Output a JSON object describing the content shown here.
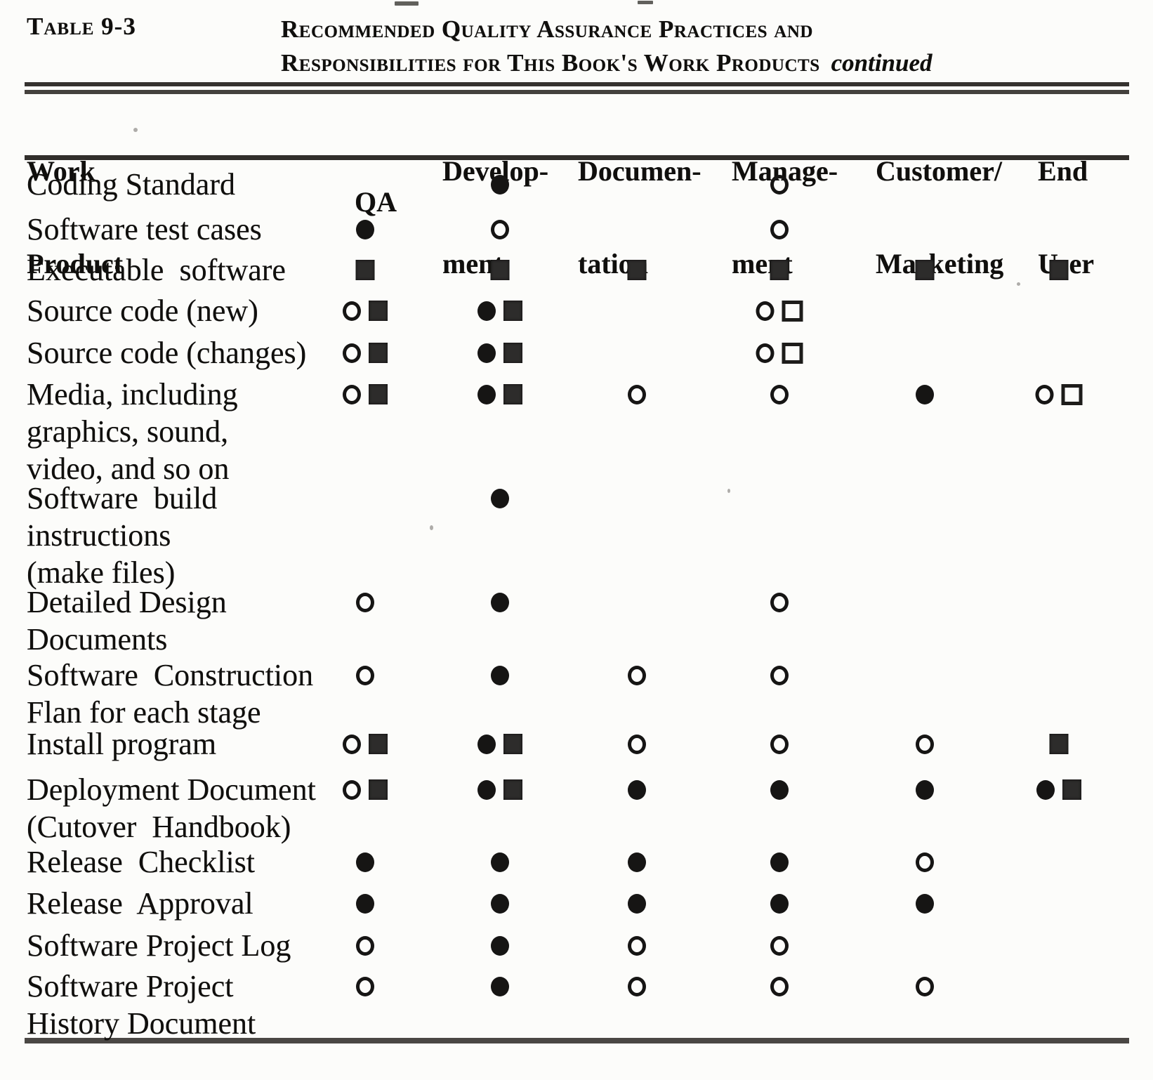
{
  "page": {
    "table_label": "Table 9-3",
    "title_line1": "Recommended Quality Assurance Practices and",
    "title_line2": "Responsibilities for This Book's Work Products",
    "title_suffix": "continued"
  },
  "colors": {
    "paper": "#fcfcfa",
    "ink": "#161514"
  },
  "table": {
    "columns": [
      {
        "id": "work_product",
        "label_lines": [
          "Work",
          "Product"
        ]
      },
      {
        "id": "qa",
        "label_lines": [
          "QA"
        ]
      },
      {
        "id": "development",
        "label_lines": [
          "Develop-",
          "ment"
        ]
      },
      {
        "id": "documentation",
        "label_lines": [
          "Documen-",
          "tation"
        ]
      },
      {
        "id": "management",
        "label_lines": [
          "Manage-",
          "ment"
        ]
      },
      {
        "id": "customer_marketing",
        "label_lines": [
          "Customer/",
          "Marketing"
        ]
      },
      {
        "id": "end_user",
        "label_lines": [
          "End",
          "User"
        ]
      }
    ],
    "symbol_types": [
      "filled-circle",
      "open-circle",
      "filled-square",
      "open-square"
    ],
    "rows": [
      {
        "product_lines": [
          "Coding Standard"
        ],
        "cells": {
          "development": [
            "filled-circle"
          ],
          "management": [
            "open-circle"
          ]
        }
      },
      {
        "product_lines": [
          "Software test cases"
        ],
        "cells": {
          "qa": [
            "filled-circle"
          ],
          "development": [
            "open-circle"
          ],
          "management": [
            "open-circle"
          ]
        }
      },
      {
        "product_lines": [
          "Executable  software"
        ],
        "cells": {
          "qa": [
            "filled-square"
          ],
          "development": [
            "filled-square"
          ],
          "documentation": [
            "filled-square"
          ],
          "management": [
            "filled-square"
          ],
          "customer_marketing": [
            "filled-square"
          ],
          "end_user": [
            "filled-square"
          ]
        }
      },
      {
        "product_lines": [
          "Source code (new)"
        ],
        "cells": {
          "qa": [
            "open-circle",
            "filled-square"
          ],
          "development": [
            "filled-circle",
            "filled-square"
          ],
          "management": [
            "open-circle",
            "open-square"
          ]
        }
      },
      {
        "product_lines": [
          "Source code (changes)"
        ],
        "cells": {
          "qa": [
            "open-circle",
            "filled-square"
          ],
          "development": [
            "filled-circle",
            "filled-square"
          ],
          "management": [
            "open-circle",
            "open-square"
          ]
        }
      },
      {
        "product_lines": [
          "Media, including",
          "graphics, sound,",
          "video, and so on"
        ],
        "cells": {
          "qa": [
            "open-circle",
            "filled-square"
          ],
          "development": [
            "filled-circle",
            "filled-square"
          ],
          "documentation": [
            "open-circle"
          ],
          "management": [
            "open-circle"
          ],
          "customer_marketing": [
            "filled-circle"
          ],
          "end_user": [
            "open-circle",
            "open-square"
          ]
        }
      },
      {
        "product_lines": [
          "Software  build",
          "instructions",
          "(make files)"
        ],
        "cells": {
          "development": [
            "filled-circle"
          ]
        }
      },
      {
        "product_lines": [
          "Detailed Design",
          "Documents"
        ],
        "cells": {
          "qa": [
            "open-circle"
          ],
          "development": [
            "filled-circle"
          ],
          "management": [
            "open-circle"
          ]
        }
      },
      {
        "product_lines": [
          "Software  Construction",
          "Flan for each stage"
        ],
        "cells": {
          "qa": [
            "open-circle"
          ],
          "development": [
            "filled-circle"
          ],
          "documentation": [
            "open-circle"
          ],
          "management": [
            "open-circle"
          ]
        }
      },
      {
        "product_lines": [
          "Install program"
        ],
        "cells": {
          "qa": [
            "open-circle",
            "filled-square"
          ],
          "development": [
            "filled-circle",
            "filled-square"
          ],
          "documentation": [
            "open-circle"
          ],
          "management": [
            "open-circle"
          ],
          "customer_marketing": [
            "open-circle"
          ],
          "end_user": [
            "filled-square"
          ]
        }
      },
      {
        "product_lines": [
          "Deployment Document",
          "(Cutover  Handbook)"
        ],
        "cells": {
          "qa": [
            "open-circle",
            "filled-square"
          ],
          "development": [
            "filled-circle",
            "filled-square"
          ],
          "documentation": [
            "filled-circle"
          ],
          "management": [
            "filled-circle"
          ],
          "customer_marketing": [
            "filled-circle"
          ],
          "end_user": [
            "filled-circle",
            "filled-square"
          ]
        }
      },
      {
        "product_lines": [
          "Release  Checklist"
        ],
        "cells": {
          "qa": [
            "filled-circle"
          ],
          "development": [
            "filled-circle"
          ],
          "documentation": [
            "filled-circle"
          ],
          "management": [
            "filled-circle"
          ],
          "customer_marketing": [
            "open-circle"
          ]
        }
      },
      {
        "product_lines": [
          "Release  Approval"
        ],
        "cells": {
          "qa": [
            "filled-circle"
          ],
          "development": [
            "filled-circle"
          ],
          "documentation": [
            "filled-circle"
          ],
          "management": [
            "filled-circle"
          ],
          "customer_marketing": [
            "filled-circle"
          ]
        }
      },
      {
        "product_lines": [
          "Software Project Log"
        ],
        "cells": {
          "qa": [
            "open-circle"
          ],
          "development": [
            "filled-circle"
          ],
          "documentation": [
            "open-circle"
          ],
          "management": [
            "open-circle"
          ]
        }
      },
      {
        "product_lines": [
          "Software Project",
          "History Document"
        ],
        "cells": {
          "qa": [
            "open-circle"
          ],
          "development": [
            "filled-circle"
          ],
          "documentation": [
            "open-circle"
          ],
          "management": [
            "open-circle"
          ],
          "customer_marketing": [
            "open-circle"
          ]
        }
      }
    ]
  }
}
